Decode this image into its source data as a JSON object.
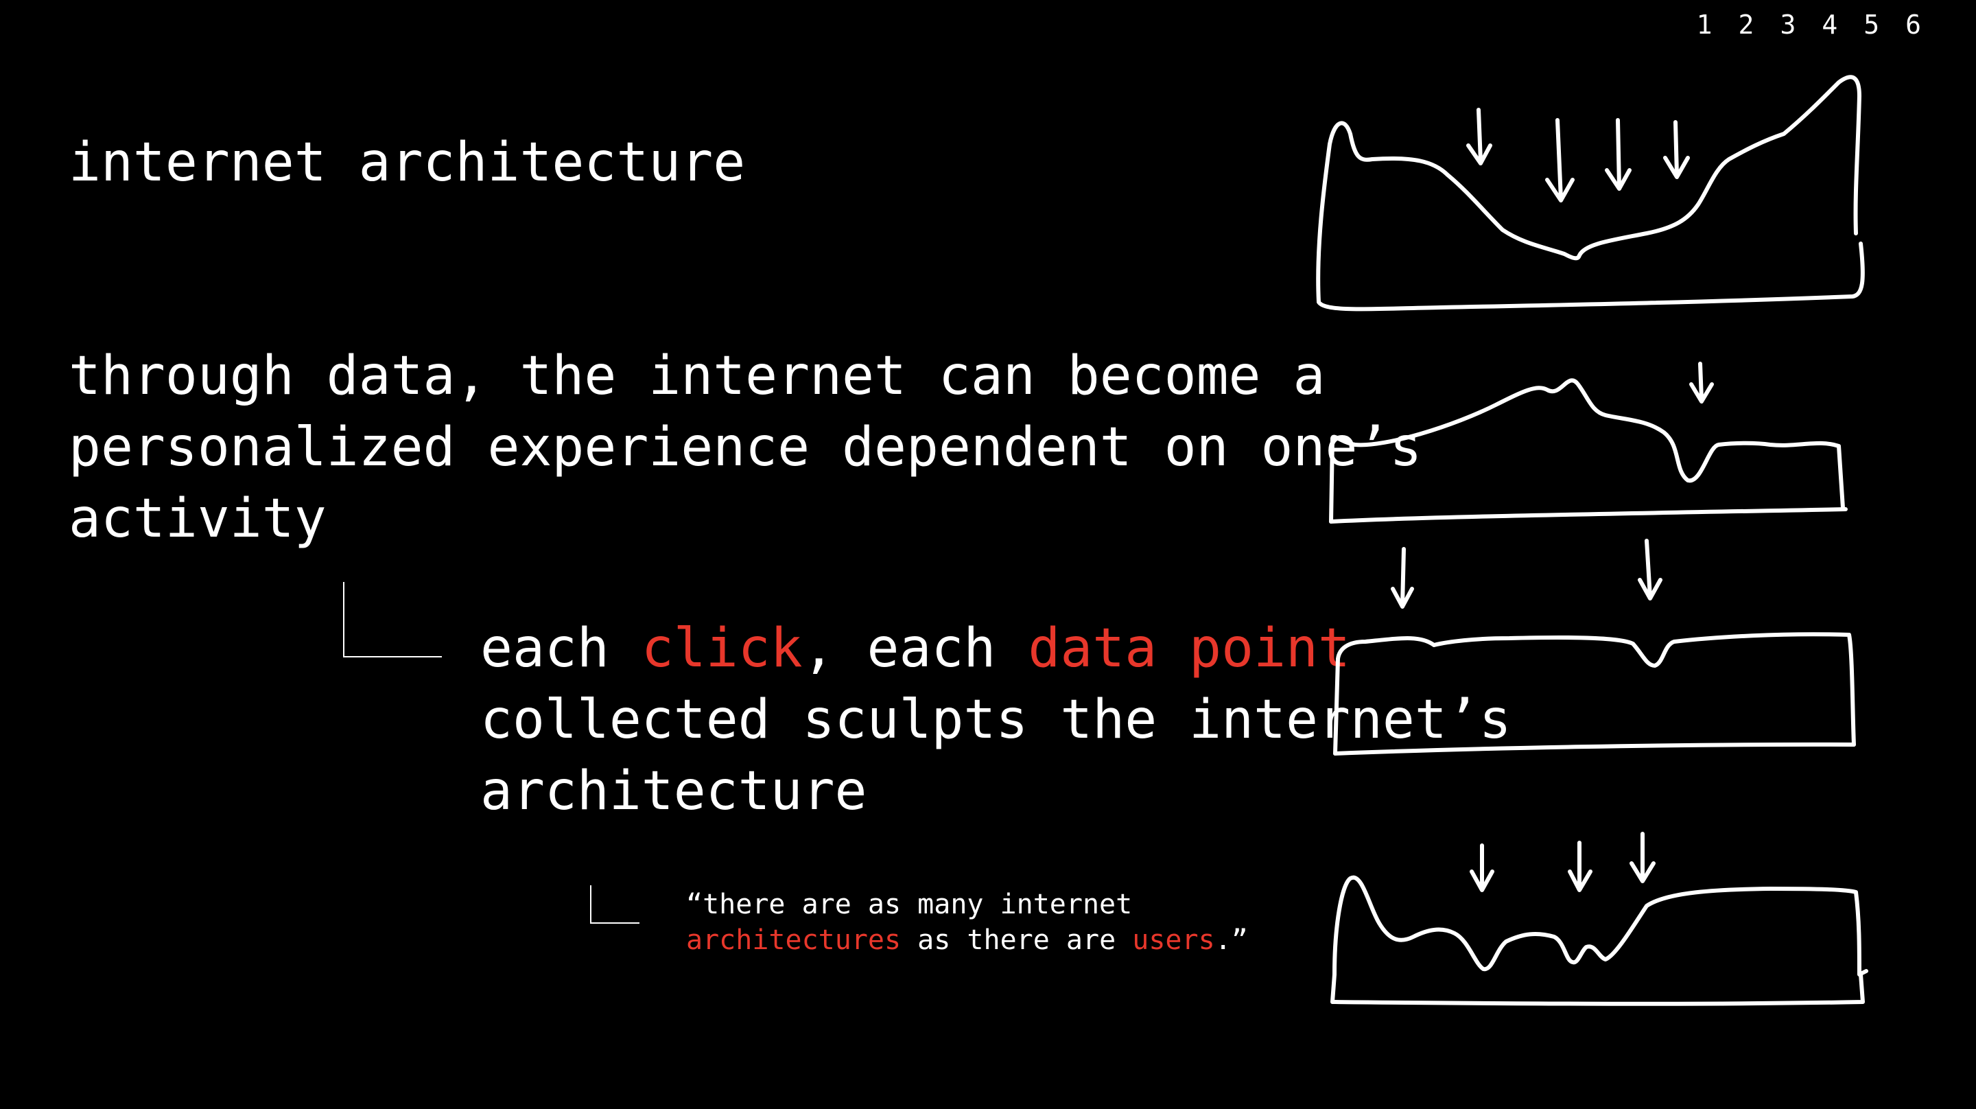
{
  "nav": {
    "items": [
      "1",
      "2",
      "3",
      "4",
      "5",
      "6"
    ]
  },
  "title": "internet architecture",
  "intro": {
    "line1": "through data, the internet can become a",
    "line2": "personalized experience dependent on one’s",
    "line3": "activity"
  },
  "detail": {
    "w1": "each ",
    "w2": "click",
    "w3": ", each ",
    "w4": "data point",
    "line2": "collected sculpts the internet’s",
    "line3": "architecture"
  },
  "quote": {
    "line1": "“there are as many internet",
    "w1": "architectures",
    "w2": " as there are ",
    "w3": "users",
    "w4": ".”"
  },
  "colors": {
    "background": "#000000",
    "text": "#ffffff",
    "accent": "#e8372b"
  },
  "sketch_icons": [
    "wave-sketch-1",
    "wave-sketch-2",
    "wave-sketch-3",
    "wave-sketch-4",
    "down-arrow-icon"
  ]
}
